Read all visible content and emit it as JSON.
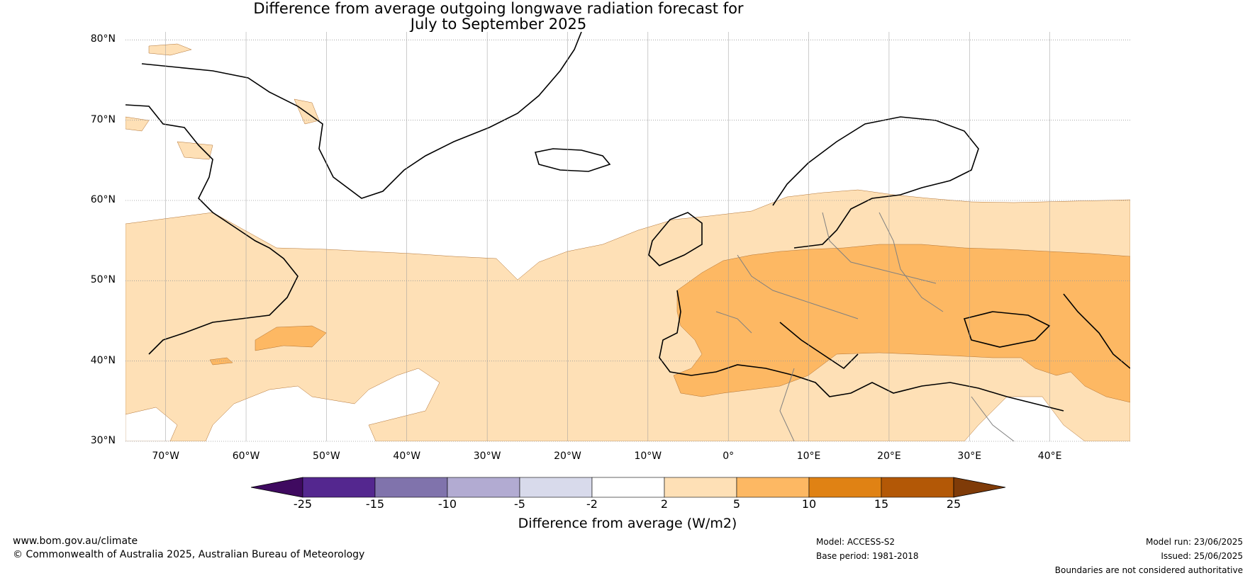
{
  "title_line1": "Difference from average outgoing longwave radiation forecast for",
  "title_line2": "July to September 2025",
  "map": {
    "extent": {
      "lon": [
        -75,
        50
      ],
      "lat": [
        30,
        81
      ]
    },
    "lat_ticks": [
      {
        "value": 80,
        "label": "80°N"
      },
      {
        "value": 70,
        "label": "70°N"
      },
      {
        "value": 60,
        "label": "60°N"
      },
      {
        "value": 50,
        "label": "50°N"
      },
      {
        "value": 40,
        "label": "40°N"
      },
      {
        "value": 30,
        "label": "30°N"
      }
    ],
    "lon_ticks": [
      {
        "value": -70,
        "label": "70°W"
      },
      {
        "value": -60,
        "label": "60°W"
      },
      {
        "value": -50,
        "label": "50°W"
      },
      {
        "value": -40,
        "label": "40°W"
      },
      {
        "value": -30,
        "label": "30°W"
      },
      {
        "value": -20,
        "label": "20°W"
      },
      {
        "value": -10,
        "label": "10°W"
      },
      {
        "value": 0,
        "label": "0°"
      },
      {
        "value": 10,
        "label": "10°E"
      },
      {
        "value": 20,
        "label": "20°E"
      },
      {
        "value": 30,
        "label": "30°E"
      },
      {
        "value": 40,
        "label": "40°E"
      }
    ]
  },
  "colorbar": {
    "label": "Difference from average (W/m2)",
    "ticks": [
      "-25",
      "-15",
      "-10",
      "-5",
      "-2",
      "2",
      "5",
      "10",
      "15",
      "25"
    ],
    "colors": [
      "#3f0a60",
      "#54278f",
      "#8073ac",
      "#b2abd2",
      "#d8daeb",
      "#ffffff",
      "#fee0b6",
      "#fdb863",
      "#e08214",
      "#b35806",
      "#7f3b08"
    ]
  },
  "footer": {
    "website": "www.bom.gov.au/climate",
    "copyright": "© Commonwealth of Australia 2025, Australian Bureau of Meteorology",
    "model": "Model: ACCESS-S2",
    "base_period": "Base period: 1981-2018",
    "model_run": "Model run: 23/06/2025",
    "issued": "Issued: 25/06/2025",
    "disclaimer": "Boundaries are not considered authoritative"
  }
}
